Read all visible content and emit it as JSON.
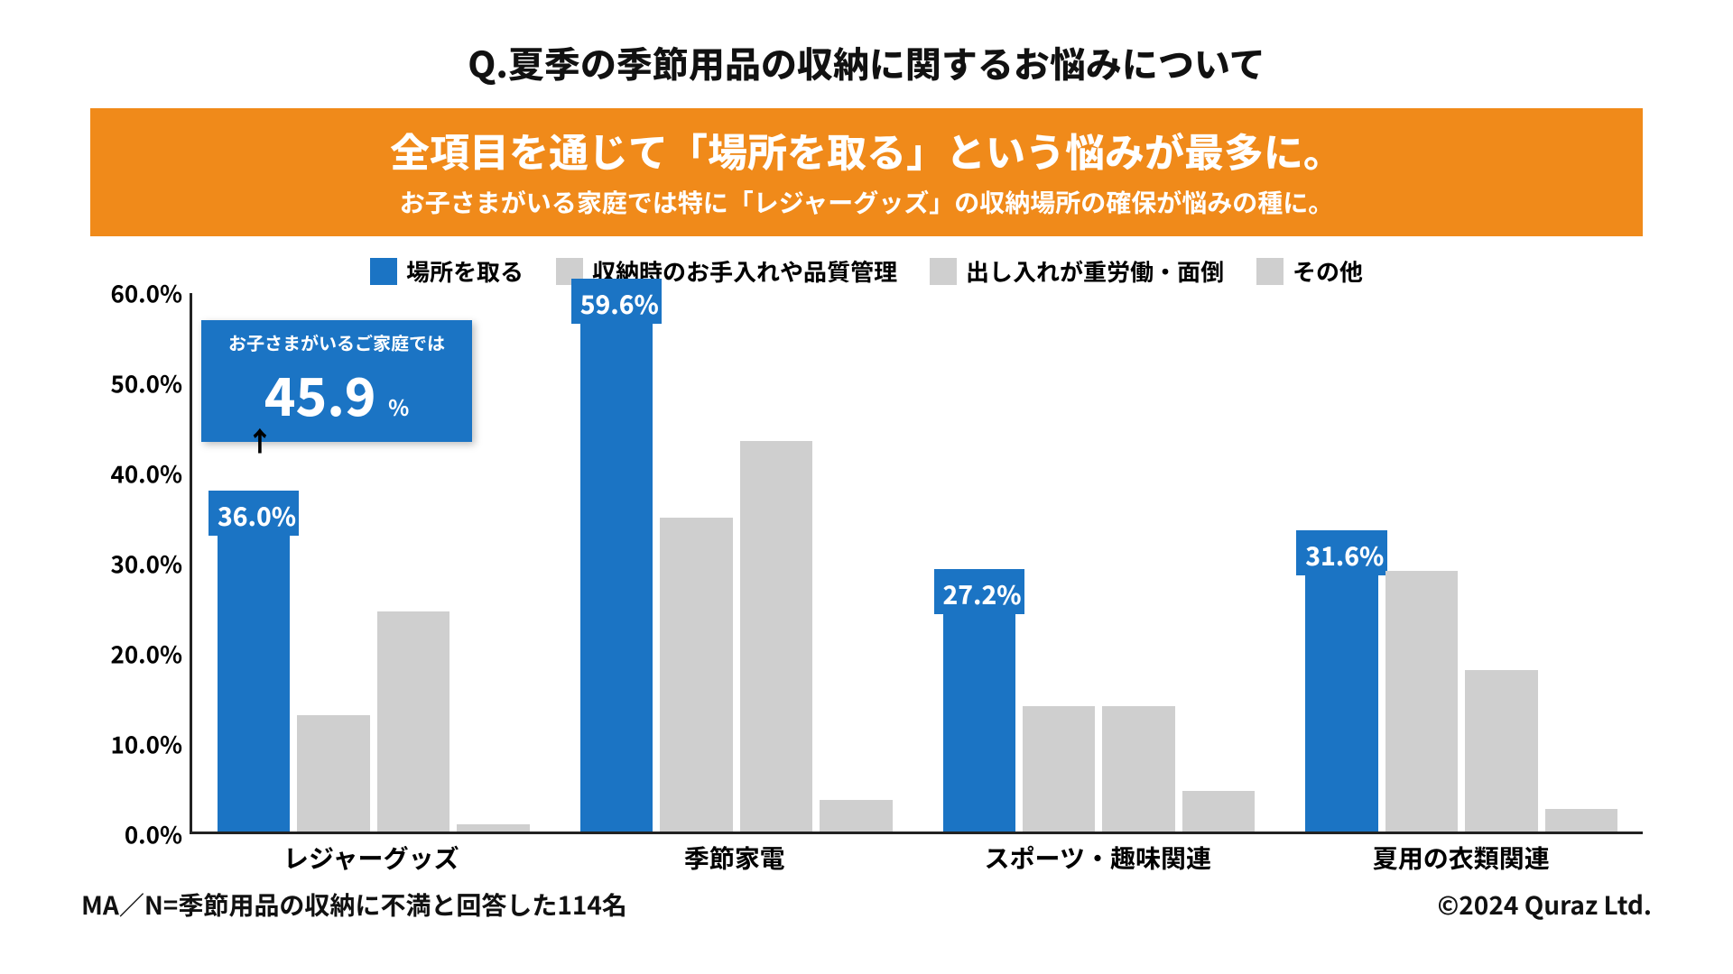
{
  "title": "Q.夏季の季節用品の収納に関するお悩みについて",
  "title_fontsize": 40,
  "title_color": "#111111",
  "banner": {
    "bg": "#f08a1a",
    "text_color": "#ffffff",
    "line1": "全項目を通じて「場所を取る」という悩みが最多に。",
    "line1_fontsize": 44,
    "line2": "お子さまがいる家庭では特に「レジャーグッズ」の収納場所の確保が悩みの種に。",
    "line2_fontsize": 28
  },
  "legend": {
    "fontsize": 26,
    "items": [
      {
        "label": "場所を取る",
        "color": "#1b74c4"
      },
      {
        "label": "収納時のお手入れや品質管理",
        "color": "#cfcfcf"
      },
      {
        "label": "出し入れが重労働・面倒",
        "color": "#cfcfcf"
      },
      {
        "label": "その他",
        "color": "#cfcfcf"
      }
    ]
  },
  "chart": {
    "type": "grouped-bar",
    "ylim": [
      0,
      60
    ],
    "ytick_step": 10,
    "ytick_labels": [
      "0.0%",
      "10.0%",
      "20.0%",
      "30.0%",
      "40.0%",
      "50.0%",
      "60.0%"
    ],
    "ytick_fontsize": 26,
    "axis_color": "#222222",
    "categories": [
      "レジャーグッズ",
      "季節家電",
      "スポーツ・趣味関連",
      "夏用の衣類関連"
    ],
    "xlabel_fontsize": 28,
    "series_colors": {
      "highlight": "#1b74c4",
      "other": "#cfcfcf"
    },
    "highlight_label_fontsize": 28,
    "highlight_label_color": "#ffffff",
    "groups": [
      {
        "values": [
          36.0,
          13.0,
          24.5,
          0.8
        ],
        "highlight_index": 0,
        "highlight_label": "36.0%"
      },
      {
        "values": [
          59.6,
          35.0,
          43.5,
          3.5
        ],
        "highlight_index": 0,
        "highlight_label": "59.6%"
      },
      {
        "values": [
          27.2,
          14.0,
          14.0,
          4.5
        ],
        "highlight_index": 0,
        "highlight_label": "27.2%"
      },
      {
        "values": [
          31.6,
          29.0,
          18.0,
          2.5
        ],
        "highlight_index": 0,
        "highlight_label": "31.6%"
      }
    ]
  },
  "callout": {
    "bg": "#1b74c4",
    "text_color": "#ffffff",
    "top_text": "お子さまがいるご家庭では",
    "top_fontsize": 20,
    "number": "45.9",
    "number_fontsize": 58,
    "unit": "%",
    "unit_fontsize": 24,
    "arrow_glyph": "↑"
  },
  "footer": {
    "left": "MA／N=季節用品の収納に不満と回答した114名",
    "right": "©2024 Quraz Ltd.",
    "fontsize": 28,
    "color": "#111111"
  },
  "background_color": "#ffffff"
}
